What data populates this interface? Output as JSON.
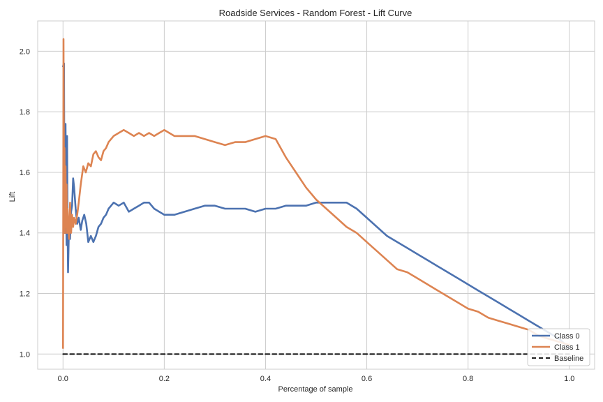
{
  "chart_data": {
    "type": "line",
    "title": "Roadside Services - Random Forest - Lift Curve",
    "xlabel": "Percentage of sample",
    "ylabel": "Lift",
    "xlim": [
      -0.05,
      1.05
    ],
    "ylim": [
      0.95,
      2.1
    ],
    "xticks": [
      "0.0",
      "0.2",
      "0.4",
      "0.6",
      "0.8",
      "1.0"
    ],
    "yticks": [
      "1.0",
      "1.2",
      "1.4",
      "1.6",
      "1.8",
      "2.0"
    ],
    "grid": true,
    "legend_position": "bottom-right",
    "series": [
      {
        "name": "Class 0",
        "color": "#4c72b0",
        "x": [
          0.0,
          0.002,
          0.003,
          0.004,
          0.005,
          0.006,
          0.007,
          0.008,
          0.009,
          0.01,
          0.012,
          0.014,
          0.016,
          0.018,
          0.02,
          0.022,
          0.025,
          0.028,
          0.031,
          0.035,
          0.038,
          0.042,
          0.046,
          0.05,
          0.055,
          0.06,
          0.065,
          0.07,
          0.075,
          0.08,
          0.085,
          0.09,
          0.095,
          0.1,
          0.11,
          0.12,
          0.13,
          0.14,
          0.15,
          0.16,
          0.17,
          0.18,
          0.19,
          0.2,
          0.22,
          0.24,
          0.26,
          0.28,
          0.3,
          0.32,
          0.34,
          0.36,
          0.38,
          0.4,
          0.42,
          0.44,
          0.46,
          0.48,
          0.5,
          0.52,
          0.54,
          0.56,
          0.58,
          0.6,
          0.62,
          0.64,
          0.66,
          0.68,
          0.7,
          0.72,
          0.74,
          0.76,
          0.78,
          0.8,
          0.82,
          0.84,
          0.86,
          0.88,
          0.9,
          0.92,
          0.94,
          0.96,
          0.98,
          1.0
        ],
        "values": [
          1.95,
          1.96,
          1.4,
          1.52,
          1.76,
          1.5,
          1.36,
          1.72,
          1.42,
          1.27,
          1.44,
          1.38,
          1.47,
          1.49,
          1.58,
          1.55,
          1.48,
          1.43,
          1.45,
          1.41,
          1.44,
          1.46,
          1.43,
          1.37,
          1.39,
          1.37,
          1.39,
          1.42,
          1.43,
          1.45,
          1.46,
          1.48,
          1.49,
          1.5,
          1.49,
          1.5,
          1.47,
          1.48,
          1.49,
          1.5,
          1.5,
          1.48,
          1.47,
          1.46,
          1.46,
          1.47,
          1.48,
          1.49,
          1.49,
          1.48,
          1.48,
          1.48,
          1.47,
          1.48,
          1.48,
          1.49,
          1.49,
          1.49,
          1.5,
          1.5,
          1.5,
          1.5,
          1.48,
          1.45,
          1.42,
          1.39,
          1.37,
          1.35,
          1.33,
          1.31,
          1.29,
          1.27,
          1.25,
          1.23,
          1.21,
          1.19,
          1.17,
          1.15,
          1.13,
          1.11,
          1.09,
          1.07,
          1.05,
          1.02
        ]
      },
      {
        "name": "Class 1",
        "color": "#dd8452",
        "x": [
          0.0,
          0.001,
          0.002,
          0.003,
          0.004,
          0.005,
          0.006,
          0.007,
          0.008,
          0.009,
          0.01,
          0.012,
          0.014,
          0.016,
          0.018,
          0.02,
          0.022,
          0.025,
          0.028,
          0.031,
          0.035,
          0.04,
          0.045,
          0.05,
          0.055,
          0.06,
          0.065,
          0.07,
          0.075,
          0.08,
          0.085,
          0.09,
          0.1,
          0.11,
          0.12,
          0.13,
          0.14,
          0.15,
          0.16,
          0.17,
          0.18,
          0.19,
          0.2,
          0.22,
          0.24,
          0.26,
          0.28,
          0.3,
          0.32,
          0.34,
          0.36,
          0.38,
          0.4,
          0.42,
          0.44,
          0.46,
          0.48,
          0.5,
          0.52,
          0.54,
          0.56,
          0.58,
          0.6,
          0.62,
          0.64,
          0.66,
          0.68,
          0.7,
          0.72,
          0.74,
          0.76,
          0.78,
          0.8,
          0.82,
          0.84,
          0.86,
          0.88,
          0.9,
          0.92,
          0.94,
          0.96,
          0.98,
          1.0
        ],
        "values": [
          1.02,
          2.04,
          1.52,
          1.68,
          1.4,
          1.62,
          1.42,
          1.56,
          1.4,
          1.48,
          1.44,
          1.38,
          1.5,
          1.4,
          1.46,
          1.42,
          1.45,
          1.43,
          1.46,
          1.5,
          1.56,
          1.62,
          1.6,
          1.63,
          1.62,
          1.66,
          1.67,
          1.65,
          1.64,
          1.67,
          1.68,
          1.7,
          1.72,
          1.73,
          1.74,
          1.73,
          1.72,
          1.73,
          1.72,
          1.73,
          1.72,
          1.73,
          1.74,
          1.72,
          1.72,
          1.72,
          1.71,
          1.7,
          1.69,
          1.7,
          1.7,
          1.71,
          1.72,
          1.71,
          1.65,
          1.6,
          1.55,
          1.51,
          1.48,
          1.45,
          1.42,
          1.4,
          1.37,
          1.34,
          1.31,
          1.28,
          1.27,
          1.25,
          1.23,
          1.21,
          1.19,
          1.17,
          1.15,
          1.14,
          1.12,
          1.11,
          1.1,
          1.09,
          1.08,
          1.06,
          1.05,
          1.04,
          1.03
        ]
      },
      {
        "name": "Baseline",
        "color": "#000000",
        "x": [
          0.0,
          1.0
        ],
        "values": [
          1.0,
          1.0
        ]
      }
    ]
  }
}
